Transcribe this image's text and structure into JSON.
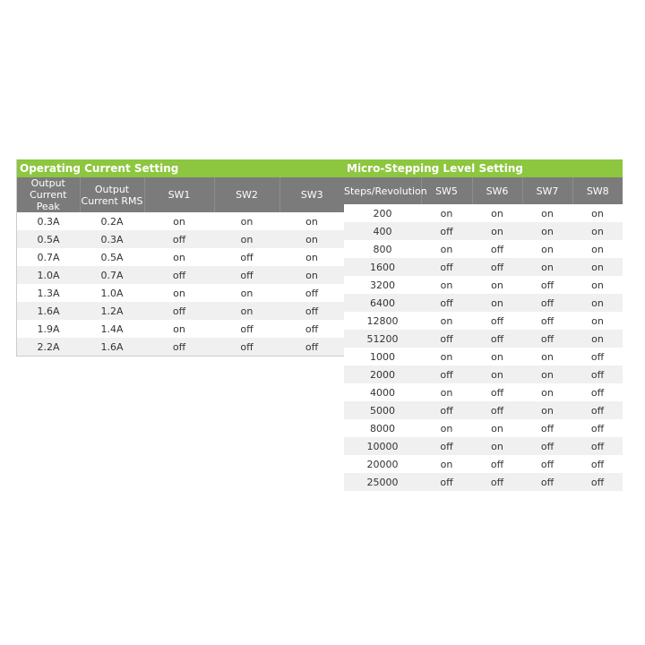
{
  "current_table": {
    "title": "Operating Current Setting",
    "headers": [
      "Output\nCurrent Peak",
      "Output\nCurrent RMS",
      "SW1",
      "SW2",
      "SW3"
    ],
    "rows": [
      [
        "0.3A",
        "0.2A",
        "on",
        "on",
        "on"
      ],
      [
        "0.5A",
        "0.3A",
        "off",
        "on",
        "on"
      ],
      [
        "0.7A",
        "0.5A",
        "on",
        "off",
        "on"
      ],
      [
        "1.0A",
        "0.7A",
        "off",
        "off",
        "on"
      ],
      [
        "1.3A",
        "1.0A",
        "on",
        "on",
        "off"
      ],
      [
        "1.6A",
        "1.2A",
        "off",
        "on",
        "off"
      ],
      [
        "1.9A",
        "1.4A",
        "on",
        "off",
        "off"
      ],
      [
        "2.2A",
        "1.6A",
        "off",
        "off",
        "off"
      ]
    ]
  },
  "microstep_table": {
    "title": "Micro-Stepping Level Setting",
    "headers": [
      "Steps/Revolution",
      "SW5",
      "SW6",
      "SW7",
      "SW8"
    ],
    "rows": [
      [
        "200",
        "on",
        "on",
        "on",
        "on"
      ],
      [
        "400",
        "off",
        "on",
        "on",
        "on"
      ],
      [
        "800",
        "on",
        "off",
        "on",
        "on"
      ],
      [
        "1600",
        "off",
        "off",
        "on",
        "on"
      ],
      [
        "3200",
        "on",
        "on",
        "off",
        "on"
      ],
      [
        "6400",
        "off",
        "on",
        "off",
        "on"
      ],
      [
        "12800",
        "on",
        "off",
        "off",
        "on"
      ],
      [
        "51200",
        "off",
        "off",
        "off",
        "on"
      ],
      [
        "1000",
        "on",
        "on",
        "on",
        "off"
      ],
      [
        "2000",
        "off",
        "on",
        "on",
        "off"
      ],
      [
        "4000",
        "on",
        "off",
        "on",
        "off"
      ],
      [
        "5000",
        "off",
        "off",
        "on",
        "off"
      ],
      [
        "8000",
        "on",
        "on",
        "off",
        "off"
      ],
      [
        "10000",
        "off",
        "on",
        "off",
        "off"
      ],
      [
        "20000",
        "on",
        "off",
        "off",
        "off"
      ],
      [
        "25000",
        "off",
        "off",
        "off",
        "off"
      ]
    ]
  },
  "colors": {
    "title_bg": "#8dc63f",
    "header_bg": "#7b7b7b",
    "alt_row": "#f0f0f0"
  }
}
